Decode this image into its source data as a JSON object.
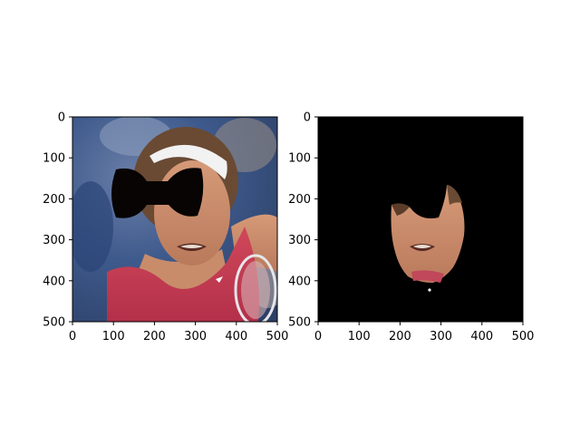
{
  "figure": {
    "background": "#ffffff",
    "panels": [
      {
        "name": "original-with-mask",
        "image": "face photo with black bow-tie shaped occlusion",
        "xlim": [
          0,
          500
        ],
        "ylim_inverted": [
          500,
          0
        ],
        "xticks": [
          "0",
          "100",
          "200",
          "300",
          "400",
          "500"
        ],
        "yticks": [
          "0",
          "100",
          "200",
          "300",
          "400",
          "500"
        ]
      },
      {
        "name": "segmented-face",
        "image": "face region cut out on black background",
        "xlim": [
          0,
          500
        ],
        "ylim_inverted": [
          500,
          0
        ],
        "xticks": [
          "0",
          "100",
          "200",
          "300",
          "400",
          "500"
        ],
        "yticks": [
          "0",
          "100",
          "200",
          "300",
          "400",
          "500"
        ]
      }
    ]
  }
}
